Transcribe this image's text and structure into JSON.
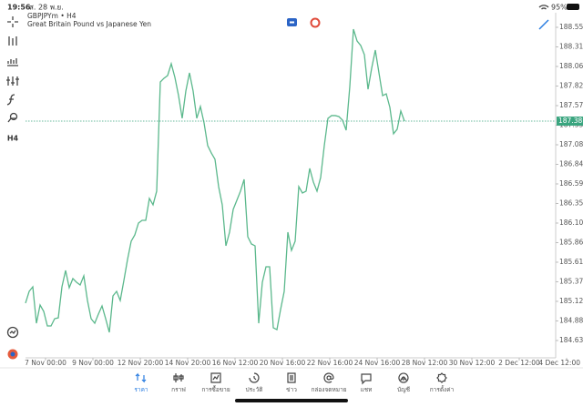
{
  "status_bar": {
    "time": "19:56",
    "date": "ส. 28 พ.ย.",
    "battery": "95%"
  },
  "symbol": {
    "name": "GBPJPYm • H4",
    "description": "Great Britain Pound vs Japanese Yen"
  },
  "left_toolbar": {
    "timeframe": "H4"
  },
  "chart_data": {
    "type": "line",
    "color": "#5bb88c",
    "values": [
      185.102,
      185.25,
      185.307,
      184.851,
      185.079,
      184.999,
      184.817,
      184.817,
      184.908,
      184.919,
      185.307,
      185.512,
      185.296,
      185.41,
      185.364,
      185.33,
      185.444,
      185.136,
      184.908,
      184.851,
      184.965,
      185.068,
      184.908,
      184.737,
      185.193,
      185.25,
      185.136,
      185.387,
      185.649,
      185.877,
      185.957,
      186.105,
      186.139,
      186.139,
      186.413,
      186.333,
      186.504,
      187.871,
      187.917,
      187.951,
      188.099,
      187.928,
      187.7,
      187.416,
      187.757,
      187.985,
      187.757,
      187.416,
      187.564,
      187.358,
      187.074,
      186.982,
      186.903,
      186.561,
      186.333,
      185.82,
      185.991,
      186.276,
      186.39,
      186.504,
      186.652,
      185.934,
      185.843,
      185.82,
      184.851,
      185.364,
      185.558,
      185.558,
      184.794,
      184.771,
      185.022,
      185.25,
      185.991,
      185.763,
      185.877,
      186.561,
      186.481,
      186.504,
      186.789,
      186.618,
      186.504,
      186.675,
      187.074,
      187.416,
      187.45,
      187.45,
      187.438,
      187.393,
      187.267,
      187.814,
      188.532,
      188.384,
      188.327,
      188.213,
      187.78,
      188.042,
      188.27,
      187.985,
      187.7,
      187.723,
      187.552,
      187.222,
      187.279,
      187.507,
      187.381
    ],
    "last_price": 187.381,
    "ylim": [
      184.418,
      188.669
    ],
    "yticks": [
      184.635,
      184.88,
      185.125,
      185.37,
      185.615,
      185.86,
      186.105,
      186.35,
      186.595,
      186.84,
      187.085,
      187.33,
      187.575,
      187.82,
      188.065,
      188.31,
      188.555
    ],
    "xlim": [
      0,
      150.5
    ],
    "xticks": [
      {
        "value": 5.5,
        "label": "7 Nov 00:00"
      },
      {
        "value": 18.5,
        "label": "9 Nov 00:00"
      },
      {
        "value": 31.5,
        "label": "12 Nov 20:00"
      },
      {
        "value": 44.5,
        "label": "14 Nov 20:00"
      },
      {
        "value": 57.5,
        "label": "16 Nov 12:00"
      },
      {
        "value": 70.5,
        "label": "20 Nov 16:00"
      },
      {
        "value": 83.5,
        "label": "22 Nov 16:00"
      },
      {
        "value": 96.5,
        "label": "24 Nov 16:00"
      },
      {
        "value": 109.5,
        "label": "28 Nov 12:00"
      },
      {
        "value": 122.5,
        "label": "30 Nov 12:00"
      },
      {
        "value": 135.5,
        "label": "2 Dec 12:00"
      },
      {
        "value": 148.5,
        "label": "4 Dec 12:00"
      }
    ],
    "grid": false
  },
  "tab_bar": {
    "tabs": [
      "ราคา",
      "กราฟ",
      "การซื้อขาย",
      "ประวัติ",
      "ข่าว",
      "กล่องจดหมาย",
      "แชท",
      "บัญชี",
      "การตั้งค่า"
    ],
    "active": 0
  }
}
